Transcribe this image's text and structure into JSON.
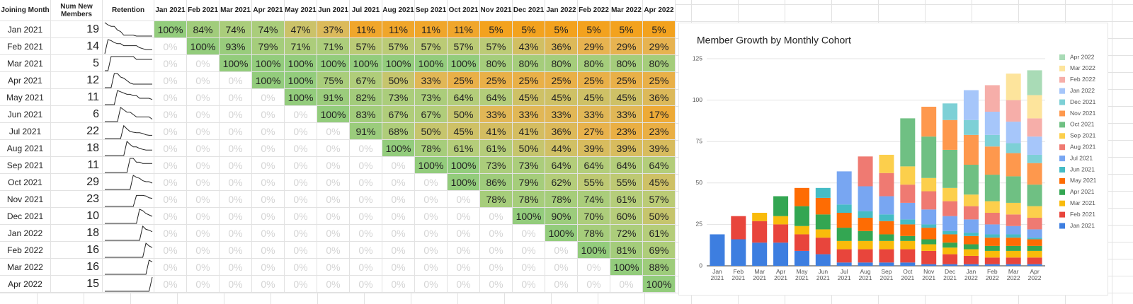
{
  "table": {
    "columns": [
      "Joining Month",
      "Num New Members",
      "Retention",
      "Jan 2021",
      "Feb 2021",
      "Mar 2021",
      "Apr 2021",
      "May 2021",
      "Jun 2021",
      "Jul 2021",
      "Aug 2021",
      "Sep 2021",
      "Oct 2021",
      "Nov 2021",
      "Dec 2021",
      "Jan 2022",
      "Feb 2022",
      "Mar 2022",
      "Apr 2022"
    ],
    "rows": [
      {
        "month": "Jan 2021",
        "members": 19,
        "cells": [
          "100%",
          "84%",
          "74%",
          "74%",
          "47%",
          "37%",
          "11%",
          "11%",
          "11%",
          "11%",
          "5%",
          "5%",
          "5%",
          "5%",
          "5%",
          "5%"
        ]
      },
      {
        "month": "Feb 2021",
        "members": 14,
        "cells": [
          "0%",
          "100%",
          "93%",
          "79%",
          "71%",
          "71%",
          "57%",
          "57%",
          "57%",
          "57%",
          "57%",
          "43%",
          "36%",
          "29%",
          "29%",
          "29%"
        ]
      },
      {
        "month": "Mar 2021",
        "members": 5,
        "cells": [
          "0%",
          "0%",
          "100%",
          "100%",
          "100%",
          "100%",
          "100%",
          "100%",
          "100%",
          "100%",
          "80%",
          "80%",
          "80%",
          "80%",
          "80%",
          "80%"
        ]
      },
      {
        "month": "Apr 2021",
        "members": 12,
        "cells": [
          "0%",
          "0%",
          "0%",
          "100%",
          "100%",
          "75%",
          "67%",
          "50%",
          "33%",
          "25%",
          "25%",
          "25%",
          "25%",
          "25%",
          "25%",
          "25%"
        ]
      },
      {
        "month": "May 2021",
        "members": 11,
        "cells": [
          "0%",
          "0%",
          "0%",
          "0%",
          "100%",
          "91%",
          "82%",
          "73%",
          "73%",
          "64%",
          "64%",
          "45%",
          "45%",
          "45%",
          "45%",
          "36%"
        ]
      },
      {
        "month": "Jun 2021",
        "members": 6,
        "cells": [
          "0%",
          "0%",
          "0%",
          "0%",
          "0%",
          "100%",
          "83%",
          "67%",
          "67%",
          "50%",
          "33%",
          "33%",
          "33%",
          "33%",
          "33%",
          "17%"
        ]
      },
      {
        "month": "Jul 2021",
        "members": 22,
        "cells": [
          "0%",
          "0%",
          "0%",
          "0%",
          "0%",
          "0%",
          "91%",
          "68%",
          "50%",
          "45%",
          "41%",
          "41%",
          "36%",
          "27%",
          "23%",
          "23%"
        ]
      },
      {
        "month": "Aug 2021",
        "members": 18,
        "cells": [
          "0%",
          "0%",
          "0%",
          "0%",
          "0%",
          "0%",
          "0%",
          "100%",
          "78%",
          "61%",
          "61%",
          "50%",
          "44%",
          "39%",
          "39%",
          "39%"
        ]
      },
      {
        "month": "Sep 2021",
        "members": 11,
        "cells": [
          "0%",
          "0%",
          "0%",
          "0%",
          "0%",
          "0%",
          "0%",
          "0%",
          "100%",
          "100%",
          "73%",
          "73%",
          "64%",
          "64%",
          "64%",
          "64%"
        ]
      },
      {
        "month": "Oct 2021",
        "members": 29,
        "cells": [
          "0%",
          "0%",
          "0%",
          "0%",
          "0%",
          "0%",
          "0%",
          "0%",
          "0%",
          "100%",
          "86%",
          "79%",
          "62%",
          "55%",
          "55%",
          "45%"
        ]
      },
      {
        "month": "Nov 2021",
        "members": 23,
        "cells": [
          "0%",
          "0%",
          "0%",
          "0%",
          "0%",
          "0%",
          "0%",
          "0%",
          "0%",
          "0%",
          "78%",
          "78%",
          "78%",
          "74%",
          "61%",
          "57%"
        ]
      },
      {
        "month": "Dec 2021",
        "members": 10,
        "cells": [
          "0%",
          "0%",
          "0%",
          "0%",
          "0%",
          "0%",
          "0%",
          "0%",
          "0%",
          "0%",
          "0%",
          "100%",
          "90%",
          "70%",
          "60%",
          "50%"
        ]
      },
      {
        "month": "Jan 2022",
        "members": 18,
        "cells": [
          "0%",
          "0%",
          "0%",
          "0%",
          "0%",
          "0%",
          "0%",
          "0%",
          "0%",
          "0%",
          "0%",
          "0%",
          "100%",
          "78%",
          "72%",
          "61%"
        ]
      },
      {
        "month": "Feb 2022",
        "members": 16,
        "cells": [
          "0%",
          "0%",
          "0%",
          "0%",
          "0%",
          "0%",
          "0%",
          "0%",
          "0%",
          "0%",
          "0%",
          "0%",
          "0%",
          "100%",
          "81%",
          "69%"
        ]
      },
      {
        "month": "Mar 2022",
        "members": 16,
        "cells": [
          "0%",
          "0%",
          "0%",
          "0%",
          "0%",
          "0%",
          "0%",
          "0%",
          "0%",
          "0%",
          "0%",
          "0%",
          "0%",
          "0%",
          "100%",
          "88%"
        ]
      },
      {
        "month": "Apr 2022",
        "members": 15,
        "cells": [
          "0%",
          "0%",
          "0%",
          "0%",
          "0%",
          "0%",
          "0%",
          "0%",
          "0%",
          "0%",
          "0%",
          "0%",
          "0%",
          "0%",
          "0%",
          "100%"
        ]
      }
    ]
  },
  "chart_data": {
    "type": "stacked_bar",
    "title": "Member Growth by Monthly Cohort",
    "categories": [
      "Jan 2021",
      "Feb 2021",
      "Mar 2021",
      "Apr 2021",
      "May 2021",
      "Jun 2021",
      "Jul 2021",
      "Aug 2021",
      "Sep 2021",
      "Oct 2021",
      "Nov 2021",
      "Dec 2021",
      "Jan 2022",
      "Feb 2022",
      "Mar 2022",
      "Apr 2022"
    ],
    "ylim": [
      0,
      125
    ],
    "yticks": [
      0,
      25,
      50,
      75,
      100,
      125
    ],
    "grid": true,
    "legend": "right",
    "series": [
      {
        "name": "Jan 2021",
        "color": "#3d7ee0",
        "values": [
          19,
          16,
          14,
          14,
          9,
          7,
          2,
          2,
          2,
          2,
          1,
          1,
          1,
          1,
          1,
          1
        ]
      },
      {
        "name": "Feb 2021",
        "color": "#e8453c",
        "values": [
          null,
          14,
          13,
          11,
          10,
          10,
          8,
          8,
          8,
          8,
          8,
          6,
          5,
          4,
          4,
          4
        ]
      },
      {
        "name": "Mar 2021",
        "color": "#f9bb0b",
        "values": [
          null,
          null,
          5,
          5,
          5,
          5,
          5,
          5,
          5,
          5,
          4,
          4,
          4,
          4,
          4,
          4
        ]
      },
      {
        "name": "Apr 2021",
        "color": "#33a652",
        "values": [
          null,
          null,
          null,
          12,
          12,
          9,
          8,
          6,
          4,
          3,
          3,
          3,
          3,
          3,
          3,
          3
        ]
      },
      {
        "name": "May 2021",
        "color": "#fe6c03",
        "values": [
          null,
          null,
          null,
          null,
          11,
          10,
          9,
          8,
          8,
          7,
          7,
          5,
          5,
          5,
          5,
          4
        ]
      },
      {
        "name": "Jun 2021",
        "color": "#45bcc5",
        "values": [
          null,
          null,
          null,
          null,
          null,
          6,
          5,
          4,
          4,
          3,
          2,
          2,
          2,
          2,
          2,
          1
        ]
      },
      {
        "name": "Jul 2021",
        "color": "#78a6f2",
        "values": [
          null,
          null,
          null,
          null,
          null,
          null,
          20,
          15,
          11,
          10,
          9,
          9,
          8,
          6,
          5,
          5
        ]
      },
      {
        "name": "Aug 2021",
        "color": "#ef7a72",
        "values": [
          null,
          null,
          null,
          null,
          null,
          null,
          null,
          18,
          14,
          11,
          11,
          9,
          8,
          7,
          7,
          7
        ]
      },
      {
        "name": "Sep 2021",
        "color": "#fccf4c",
        "values": [
          null,
          null,
          null,
          null,
          null,
          null,
          null,
          null,
          11,
          11,
          8,
          8,
          7,
          7,
          7,
          7
        ]
      },
      {
        "name": "Oct 2021",
        "color": "#6fc083",
        "values": [
          null,
          null,
          null,
          null,
          null,
          null,
          null,
          null,
          null,
          29,
          25,
          23,
          18,
          16,
          16,
          13
        ]
      },
      {
        "name": "Nov 2021",
        "color": "#fe984d",
        "values": [
          null,
          null,
          null,
          null,
          null,
          null,
          null,
          null,
          null,
          null,
          18,
          18,
          18,
          17,
          14,
          13
        ]
      },
      {
        "name": "Dec 2021",
        "color": "#7dd0d6",
        "values": [
          null,
          null,
          null,
          null,
          null,
          null,
          null,
          null,
          null,
          null,
          null,
          10,
          9,
          7,
          6,
          5
        ]
      },
      {
        "name": "Jan 2022",
        "color": "#a6c6fa",
        "values": [
          null,
          null,
          null,
          null,
          null,
          null,
          null,
          null,
          null,
          null,
          null,
          null,
          18,
          14,
          13,
          11
        ]
      },
      {
        "name": "Feb 2022",
        "color": "#f6aea9",
        "values": [
          null,
          null,
          null,
          null,
          null,
          null,
          null,
          null,
          null,
          null,
          null,
          null,
          null,
          16,
          13,
          11
        ]
      },
      {
        "name": "Mar 2022",
        "color": "#fde49c",
        "values": [
          null,
          null,
          null,
          null,
          null,
          null,
          null,
          null,
          null,
          null,
          null,
          null,
          null,
          null,
          16,
          14
        ]
      },
      {
        "name": "Apr 2022",
        "color": "#a9dbb6",
        "values": [
          null,
          null,
          null,
          null,
          null,
          null,
          null,
          null,
          null,
          null,
          null,
          null,
          null,
          null,
          null,
          15
        ]
      }
    ]
  }
}
